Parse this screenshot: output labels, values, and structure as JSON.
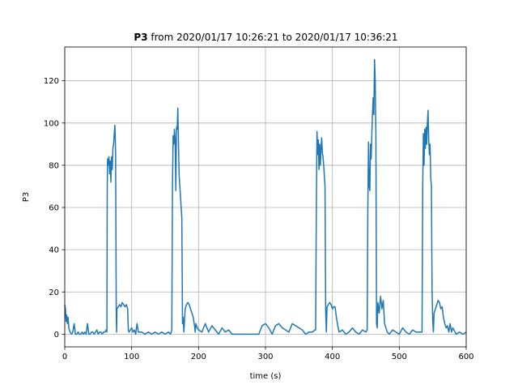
{
  "chart_data": {
    "type": "line",
    "title_bold": "P3",
    "title_rest": " from 2020/01/17 10:26:21 to 2020/01/17 10:36:21",
    "xlabel": "time (s)",
    "ylabel": "P3",
    "xlim": [
      0,
      600
    ],
    "ylim": [
      -6,
      136
    ],
    "xticks": [
      0,
      100,
      200,
      300,
      400,
      500,
      600
    ],
    "yticks": [
      0,
      20,
      40,
      60,
      80,
      100,
      120
    ],
    "grid": true,
    "line_color": "#1f77b4",
    "series": [
      {
        "x": [
          0,
          1,
          2,
          3,
          4,
          5,
          6,
          8,
          10,
          12,
          14,
          16,
          18,
          20,
          22,
          24,
          26,
          28,
          30,
          32,
          34,
          36,
          38,
          40,
          42,
          44,
          46,
          48,
          50,
          52,
          54,
          56,
          58,
          60,
          62,
          63,
          63.5,
          64,
          65,
          66,
          67,
          68,
          69,
          70,
          71,
          72,
          73,
          74,
          75,
          76,
          77,
          77.5,
          78,
          80,
          82,
          84,
          86,
          88,
          90,
          92,
          94,
          95,
          96,
          98,
          100,
          102,
          104,
          106,
          108,
          110,
          115,
          120,
          125,
          130,
          135,
          140,
          145,
          150,
          155,
          158,
          159,
          160,
          161,
          162,
          163,
          164,
          165,
          166,
          167,
          168,
          169,
          170,
          171,
          172,
          173,
          174,
          175,
          176,
          177,
          178,
          180,
          182,
          184,
          186,
          188,
          190,
          192,
          194,
          195,
          196,
          198,
          200,
          205,
          210,
          215,
          220,
          225,
          230,
          235,
          240,
          245,
          250,
          260,
          270,
          280,
          290,
          295,
          300,
          305,
          310,
          315,
          320,
          325,
          330,
          335,
          340,
          345,
          350,
          355,
          360,
          365,
          370,
          374,
          375,
          376,
          377,
          378,
          379,
          380,
          381,
          382,
          383,
          384,
          385,
          386,
          387,
          388,
          389,
          390,
          391,
          392,
          394,
          396,
          398,
          400,
          402,
          404,
          406,
          408,
          410,
          415,
          420,
          425,
          430,
          435,
          440,
          445,
          450,
          452,
          453,
          454,
          455,
          456,
          457,
          458,
          459,
          460,
          461,
          462,
          463,
          464,
          465,
          466,
          467,
          468,
          470,
          472,
          474,
          476,
          478,
          480,
          482,
          485,
          490,
          495,
          500,
          505,
          510,
          515,
          520,
          525,
          530,
          534,
          535,
          536,
          537,
          538,
          539,
          540,
          541,
          542,
          543,
          544,
          545,
          546,
          547,
          548,
          549,
          550,
          551,
          552,
          554,
          556,
          558,
          560,
          562,
          564,
          566,
          568,
          570,
          572,
          574,
          576,
          578,
          580,
          585,
          590,
          595,
          600
        ],
        "y": [
          14,
          12,
          6,
          9,
          5,
          8,
          3,
          1,
          0,
          1,
          5,
          0,
          0,
          1,
          0,
          0,
          1,
          0,
          1,
          0,
          5,
          0,
          0,
          1,
          1,
          0,
          1,
          2,
          0,
          1,
          1,
          0,
          1,
          1,
          2,
          1,
          70,
          83,
          80,
          84,
          76,
          82,
          72,
          84,
          78,
          88,
          90,
          95,
          99,
          86,
          10,
          1,
          12,
          13,
          14,
          13,
          15,
          14,
          13,
          14,
          12,
          2,
          1,
          2,
          3,
          1,
          2,
          0,
          5,
          1,
          1,
          0,
          1,
          0,
          1,
          0,
          1,
          0,
          1,
          0,
          1,
          2,
          70,
          94,
          90,
          97,
          92,
          68,
          98,
          97,
          107,
          90,
          75,
          70,
          65,
          60,
          55,
          5,
          8,
          1,
          12,
          14,
          15,
          14,
          12,
          10,
          8,
          4,
          1,
          5,
          3,
          2,
          1,
          5,
          1,
          4,
          2,
          0,
          3,
          1,
          2,
          0,
          0,
          0,
          0,
          0,
          4,
          5,
          3,
          0,
          4,
          5,
          3,
          2,
          1,
          5,
          4,
          3,
          2,
          0,
          1,
          1,
          2,
          2,
          60,
          96,
          85,
          92,
          78,
          90,
          80,
          88,
          93,
          86,
          84,
          80,
          75,
          70,
          10,
          1,
          13,
          14,
          15,
          14,
          12,
          13,
          13,
          8,
          4,
          1,
          2,
          0,
          1,
          3,
          1,
          0,
          2,
          1,
          2,
          60,
          91,
          70,
          68,
          90,
          83,
          95,
          105,
          112,
          104,
          130,
          120,
          95,
          5,
          3,
          15,
          10,
          18,
          12,
          16,
          5,
          3,
          1,
          0,
          2,
          1,
          0,
          3,
          1,
          0,
          2,
          1,
          1,
          1,
          70,
          95,
          80,
          97,
          88,
          98,
          90,
          100,
          106,
          92,
          85,
          90,
          74,
          70,
          20,
          6,
          1,
          10,
          12,
          14,
          16,
          15,
          12,
          13,
          8,
          5,
          3,
          4,
          1,
          5,
          1,
          3,
          0,
          1,
          0,
          1
        ]
      }
    ]
  }
}
